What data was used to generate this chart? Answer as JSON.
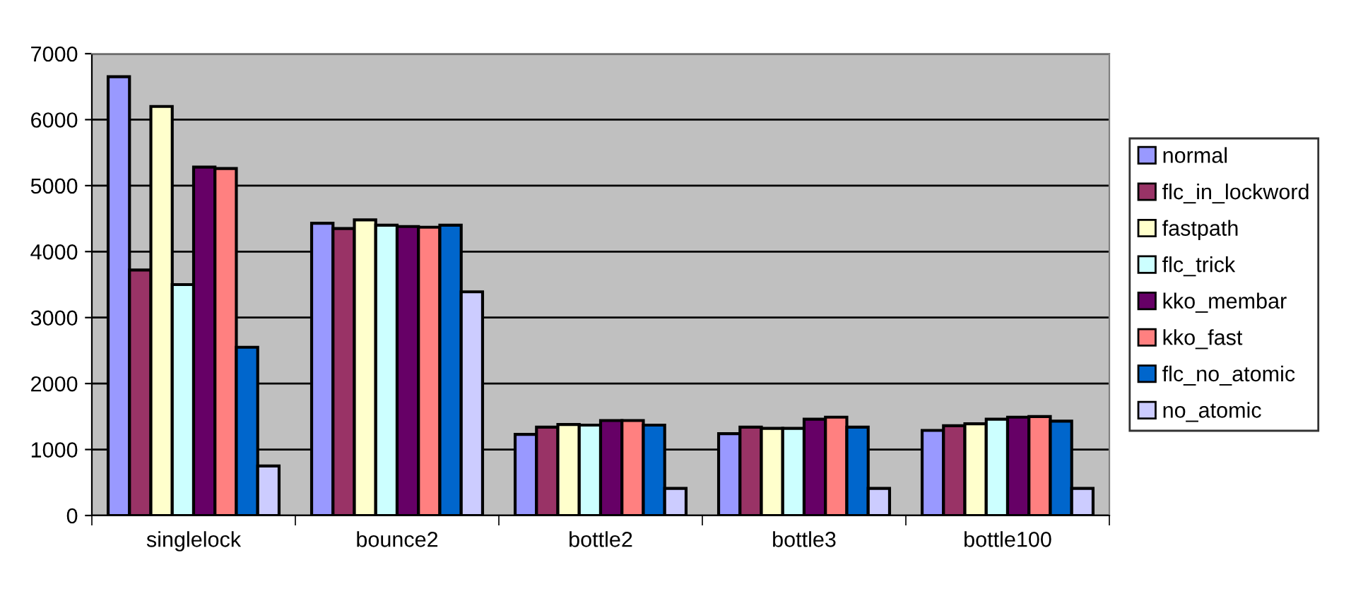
{
  "chart_data": {
    "type": "bar",
    "categories": [
      "singlelock",
      "bounce2",
      "bottle2",
      "bottle3",
      "bottle100"
    ],
    "series": [
      {
        "name": "normal",
        "color": "#9999ff",
        "values": [
          6650,
          4430,
          1230,
          1240,
          1290
        ]
      },
      {
        "name": "flc_in_lockword",
        "color": "#993366",
        "values": [
          3720,
          4350,
          1340,
          1340,
          1360
        ]
      },
      {
        "name": "fastpath",
        "color": "#ffffcc",
        "values": [
          6200,
          4480,
          1380,
          1320,
          1390
        ]
      },
      {
        "name": "flc_trick",
        "color": "#ccffff",
        "values": [
          3500,
          4400,
          1370,
          1320,
          1460
        ]
      },
      {
        "name": "kko_membar",
        "color": "#660066",
        "values": [
          5280,
          4380,
          1440,
          1460,
          1490
        ]
      },
      {
        "name": "kko_fast",
        "color": "#ff8080",
        "values": [
          5260,
          4370,
          1440,
          1490,
          1500
        ]
      },
      {
        "name": "flc_no_atomic",
        "color": "#0066cc",
        "values": [
          2550,
          4400,
          1370,
          1340,
          1430
        ]
      },
      {
        "name": "no_atomic",
        "color": "#ccccff",
        "values": [
          750,
          3390,
          410,
          410,
          410
        ]
      }
    ],
    "ylim": [
      0,
      7000
    ],
    "yticks": [
      0,
      1000,
      2000,
      3000,
      4000,
      5000,
      6000,
      7000
    ],
    "grid": "y",
    "legend": "right"
  }
}
